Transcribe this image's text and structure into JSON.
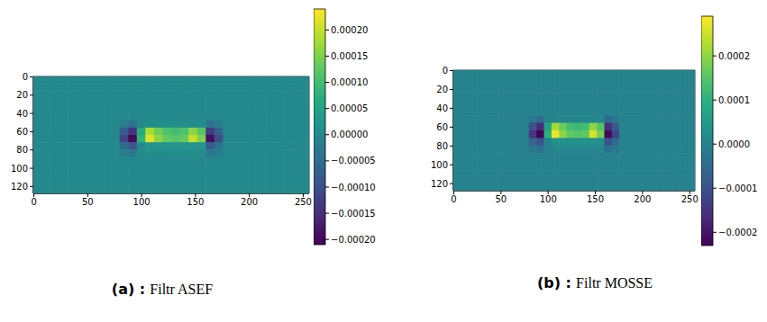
{
  "chart_data": [
    {
      "type": "heatmap",
      "panel_label": "(a) :",
      "title": "Filtr ASEF",
      "color": "viridis",
      "xlim": [
        -0.5,
        255.5
      ],
      "ylim": [
        127.5,
        -0.5
      ],
      "xticks": [
        0,
        50,
        100,
        150,
        200,
        250
      ],
      "yticks": [
        0,
        20,
        40,
        60,
        80,
        100,
        120
      ],
      "cells": [
        [
          0,
          0,
          0,
          0,
          0,
          0,
          0,
          0,
          0,
          0,
          0,
          0,
          0,
          0,
          0,
          0,
          0,
          0,
          0,
          0,
          0,
          0,
          0,
          0,
          0,
          0,
          0,
          0,
          0,
          0,
          0,
          0
        ],
        [
          0,
          0,
          0,
          0,
          0,
          0,
          0,
          0,
          0,
          0,
          0,
          0,
          0,
          0,
          0,
          0,
          0,
          0,
          0,
          0,
          0,
          0,
          0,
          0,
          0,
          0,
          0,
          0,
          0,
          0,
          0,
          0
        ],
        [
          0,
          0,
          0,
          0,
          0,
          0,
          0,
          0,
          0,
          0,
          0,
          0,
          0,
          0,
          0,
          0,
          0,
          0,
          0,
          0,
          0,
          0,
          0,
          0,
          0,
          0,
          0,
          0,
          0,
          0,
          0,
          0
        ],
        [
          0,
          0,
          0,
          0,
          0,
          0,
          0,
          0,
          0,
          0,
          0,
          0,
          0,
          0,
          0,
          0,
          0,
          0,
          0,
          0,
          0,
          0,
          0,
          0,
          0,
          0,
          0,
          0,
          0,
          0,
          0,
          0
        ],
        [
          0,
          0,
          0,
          0,
          0,
          0,
          0,
          0,
          0,
          0,
          0,
          0,
          0,
          0,
          0,
          0,
          0,
          0,
          0,
          0,
          0,
          0,
          0,
          0,
          0,
          0,
          0,
          0,
          0,
          0,
          0,
          0
        ],
        [
          0,
          0,
          0,
          0,
          0,
          0,
          0,
          0,
          0,
          0,
          0,
          0,
          0,
          0,
          0,
          0,
          0,
          0,
          0,
          0,
          0,
          0,
          0,
          0,
          0,
          0,
          0,
          0,
          0,
          0,
          0,
          0
        ],
        [
          0,
          0,
          0,
          0,
          0,
          0,
          0,
          0,
          0,
          0,
          -2e-05,
          -4e-05,
          0,
          1e-05,
          1e-05,
          1e-05,
          1e-05,
          1e-05,
          1e-05,
          1e-05,
          -4e-05,
          -2e-05,
          0,
          0,
          0,
          0,
          0,
          0,
          0,
          0,
          0,
          0
        ],
        [
          0,
          0,
          0,
          0,
          0,
          0,
          0,
          0,
          0,
          0,
          -8e-05,
          -0.00014,
          6e-05,
          0.00018,
          0.00014,
          0.00011,
          0.0001,
          0.00011,
          0.00016,
          0.00012,
          -0.00013,
          -7e-05,
          0,
          0,
          0,
          0,
          0,
          0,
          0,
          0,
          0,
          0
        ],
        [
          0,
          0,
          0,
          0,
          0,
          0,
          0,
          0,
          0,
          0,
          -0.00012,
          -0.0002,
          8e-05,
          0.00022,
          0.00016,
          0.00013,
          0.00012,
          0.00013,
          0.0002,
          0.00015,
          -0.00019,
          -0.0001,
          0,
          0,
          0,
          0,
          0,
          0,
          0,
          0,
          0,
          0
        ],
        [
          0,
          0,
          0,
          0,
          0,
          0,
          0,
          0,
          0,
          0,
          -5e-05,
          -9e-05,
          0,
          2e-05,
          2e-05,
          2e-05,
          2e-05,
          2e-05,
          2e-05,
          2e-05,
          -8e-05,
          -4e-05,
          0,
          0,
          0,
          0,
          0,
          0,
          0,
          0,
          0,
          0
        ],
        [
          0,
          0,
          0,
          0,
          0,
          0,
          0,
          0,
          0,
          0,
          -2e-05,
          -3e-05,
          0,
          1e-05,
          1e-05,
          1e-05,
          1e-05,
          1e-05,
          1e-05,
          1e-05,
          -3e-05,
          -2e-05,
          0,
          0,
          0,
          0,
          0,
          0,
          0,
          0,
          0,
          0
        ],
        [
          0,
          0,
          0,
          0,
          0,
          0,
          0,
          0,
          0,
          0,
          0,
          0,
          0,
          0,
          0,
          0,
          0,
          0,
          0,
          0,
          0,
          0,
          0,
          0,
          0,
          0,
          0,
          0,
          0,
          0,
          0,
          0
        ],
        [
          0,
          0,
          0,
          0,
          0,
          0,
          0,
          0,
          0,
          0,
          0,
          0,
          0,
          0,
          0,
          0,
          0,
          0,
          0,
          0,
          0,
          0,
          0,
          0,
          0,
          0,
          0,
          0,
          0,
          0,
          0,
          0
        ],
        [
          0,
          0,
          0,
          0,
          0,
          0,
          0,
          0,
          0,
          0,
          0,
          0,
          0,
          0,
          0,
          0,
          0,
          0,
          0,
          0,
          0,
          0,
          0,
          0,
          0,
          0,
          0,
          0,
          0,
          0,
          0,
          0
        ],
        [
          0,
          0,
          0,
          0,
          0,
          0,
          0,
          0,
          0,
          0,
          0,
          0,
          0,
          0,
          0,
          0,
          0,
          0,
          0,
          0,
          0,
          0,
          0,
          0,
          0,
          0,
          0,
          0,
          0,
          0,
          0,
          0
        ],
        [
          0,
          0,
          0,
          0,
          0,
          0,
          0,
          0,
          0,
          0,
          0,
          0,
          0,
          0,
          0,
          0,
          0,
          0,
          0,
          0,
          0,
          0,
          0,
          0,
          0,
          0,
          0,
          0,
          0,
          0,
          0,
          0
        ]
      ],
      "colorbar": {
        "range": [
          -0.00021,
          0.00024
        ],
        "ticks": [
          {
            "value": -0.0002,
            "label": "−0.00020"
          },
          {
            "value": -0.00015,
            "label": "−0.00015"
          },
          {
            "value": -0.0001,
            "label": "−0.00010"
          },
          {
            "value": -5e-05,
            "label": "−0.00005"
          },
          {
            "value": 0,
            "label": "0.00000"
          },
          {
            "value": 5e-05,
            "label": "0.00005"
          },
          {
            "value": 0.0001,
            "label": "0.00010"
          },
          {
            "value": 0.00015,
            "label": "0.00015"
          },
          {
            "value": 0.0002,
            "label": "0.00020"
          }
        ]
      }
    },
    {
      "type": "heatmap",
      "panel_label": "(b) :",
      "title": "Filtr MOSSE",
      "color": "viridis",
      "xlim": [
        -0.5,
        255.5
      ],
      "ylim": [
        127.5,
        -0.5
      ],
      "xticks": [
        0,
        50,
        100,
        150,
        200,
        250
      ],
      "yticks": [
        0,
        20,
        40,
        60,
        80,
        100,
        120
      ],
      "cells": [
        [
          0,
          0,
          0,
          0,
          0,
          0,
          0,
          0,
          0,
          0,
          0,
          0,
          0,
          0,
          0,
          0,
          0,
          0,
          0,
          0,
          0,
          0,
          0,
          0,
          0,
          0,
          0,
          0,
          0,
          0,
          0,
          0
        ],
        [
          0,
          0,
          0,
          0,
          0,
          0,
          0,
          0,
          0,
          0,
          0,
          0,
          0,
          0,
          0,
          0,
          0,
          0,
          0,
          0,
          0,
          0,
          0,
          0,
          0,
          0,
          0,
          0,
          0,
          0,
          0,
          0
        ],
        [
          0,
          0,
          0,
          0,
          0,
          0,
          0,
          0,
          0,
          0,
          0,
          0,
          0,
          0,
          0,
          0,
          0,
          0,
          0,
          0,
          0,
          0,
          0,
          0,
          0,
          0,
          0,
          0,
          0,
          0,
          0,
          0
        ],
        [
          0,
          0,
          0,
          0,
          0,
          0,
          0,
          0,
          0,
          0,
          0,
          0,
          0,
          0,
          0,
          0,
          0,
          0,
          0,
          0,
          0,
          0,
          0,
          0,
          0,
          0,
          0,
          0,
          0,
          0,
          0,
          0
        ],
        [
          0,
          0,
          0,
          0,
          0,
          0,
          0,
          0,
          0,
          0,
          0,
          0,
          0,
          0,
          0,
          0,
          0,
          0,
          0,
          0,
          0,
          0,
          0,
          0,
          0,
          0,
          0,
          0,
          0,
          0,
          0,
          0
        ],
        [
          0,
          0,
          0,
          0,
          0,
          0,
          0,
          0,
          0,
          0,
          0,
          0,
          0,
          0,
          0,
          0,
          0,
          0,
          0,
          0,
          0,
          0,
          0,
          0,
          0,
          0,
          0,
          0,
          0,
          0,
          0,
          0
        ],
        [
          0,
          0,
          0,
          0,
          0,
          0,
          0,
          0,
          0,
          0,
          -2e-05,
          -5e-05,
          0,
          1e-05,
          1e-05,
          1e-05,
          1e-05,
          1e-05,
          1e-05,
          1e-05,
          -5e-05,
          -2e-05,
          0,
          0,
          0,
          0,
          0,
          0,
          0,
          0,
          0,
          0
        ],
        [
          0,
          0,
          0,
          0,
          0,
          0,
          0,
          0,
          0,
          0,
          -0.0001,
          -0.00017,
          7e-05,
          0.00022,
          0.00017,
          0.00013,
          0.00012,
          0.00013,
          0.0002,
          0.00015,
          -0.00016,
          -8e-05,
          0,
          0,
          0,
          0,
          0,
          0,
          0,
          0,
          0,
          0
        ],
        [
          0,
          0,
          0,
          0,
          0,
          0,
          0,
          0,
          0,
          0,
          -0.00015,
          -0.00023,
          0.0001,
          0.00028,
          0.0002,
          0.00016,
          0.00015,
          0.00016,
          0.00026,
          0.00018,
          -0.00022,
          -0.00012,
          0,
          0,
          0,
          0,
          0,
          0,
          0,
          0,
          0,
          0
        ],
        [
          0,
          0,
          0,
          0,
          0,
          0,
          0,
          0,
          0,
          0,
          -6e-05,
          -0.0001,
          0,
          3e-05,
          3e-05,
          3e-05,
          3e-05,
          3e-05,
          3e-05,
          3e-05,
          -0.0001,
          -5e-05,
          0,
          0,
          0,
          0,
          0,
          0,
          0,
          0,
          0,
          0
        ],
        [
          0,
          0,
          0,
          0,
          0,
          0,
          0,
          0,
          0,
          0,
          -2e-05,
          -4e-05,
          0,
          1e-05,
          1e-05,
          1e-05,
          1e-05,
          1e-05,
          1e-05,
          1e-05,
          -4e-05,
          -2e-05,
          0,
          0,
          0,
          0,
          0,
          0,
          0,
          0,
          0,
          0
        ],
        [
          0,
          0,
          0,
          0,
          0,
          0,
          0,
          0,
          0,
          0,
          0,
          0,
          0,
          0,
          0,
          0,
          0,
          0,
          0,
          0,
          0,
          0,
          0,
          0,
          0,
          0,
          0,
          0,
          0,
          0,
          0,
          0
        ],
        [
          0,
          0,
          0,
          0,
          0,
          0,
          0,
          0,
          0,
          0,
          0,
          0,
          0,
          0,
          0,
          0,
          0,
          0,
          0,
          0,
          0,
          0,
          0,
          0,
          0,
          0,
          0,
          0,
          0,
          0,
          0,
          0
        ],
        [
          0,
          0,
          0,
          0,
          0,
          0,
          0,
          0,
          0,
          0,
          0,
          0,
          0,
          0,
          0,
          0,
          0,
          0,
          0,
          0,
          0,
          0,
          0,
          0,
          0,
          0,
          0,
          0,
          0,
          0,
          0,
          0
        ],
        [
          0,
          0,
          0,
          0,
          0,
          0,
          0,
          0,
          0,
          0,
          0,
          0,
          0,
          0,
          0,
          0,
          0,
          0,
          0,
          0,
          0,
          0,
          0,
          0,
          0,
          0,
          0,
          0,
          0,
          0,
          0,
          0
        ],
        [
          0,
          0,
          0,
          0,
          0,
          0,
          0,
          0,
          0,
          0,
          0,
          0,
          0,
          0,
          0,
          0,
          0,
          0,
          0,
          0,
          0,
          0,
          0,
          0,
          0,
          0,
          0,
          0,
          0,
          0,
          0,
          0
        ]
      ],
      "colorbar": {
        "range": [
          -0.00023,
          0.00029
        ],
        "ticks": [
          {
            "value": -0.0002,
            "label": "−0.0002"
          },
          {
            "value": -0.0001,
            "label": "−0.0001"
          },
          {
            "value": 0,
            "label": "0.0000"
          },
          {
            "value": 0.0001,
            "label": "0.0001"
          },
          {
            "value": 0.0002,
            "label": "0.0002"
          }
        ]
      }
    }
  ]
}
